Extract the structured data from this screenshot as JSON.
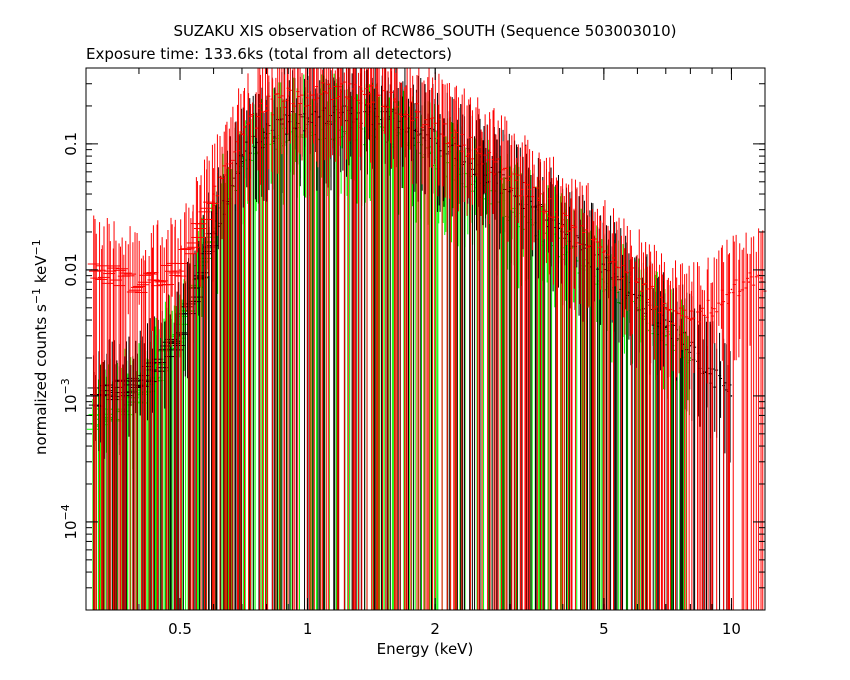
{
  "chart_data": {
    "type": "scatter",
    "title": "SUZAKU XIS observation of RCW86_SOUTH (Sequence 503003010)",
    "subtitle": "Exposure time: 133.6ks (total from all detectors)",
    "xlabel": "Energy (keV)",
    "ylabel_main": "normalized counts s",
    "ylabel_mid": " keV",
    "ylabel_exp": "−1",
    "x_scale": "log",
    "y_scale": "log",
    "xlim": [
      0.3,
      12
    ],
    "ylim": [
      2e-05,
      0.4
    ],
    "x_ticks": [
      {
        "value": 0.5,
        "label": "0.5"
      },
      {
        "value": 1,
        "label": "1"
      },
      {
        "value": 2,
        "label": "2"
      },
      {
        "value": 5,
        "label": "5"
      },
      {
        "value": 10,
        "label": "10"
      }
    ],
    "y_ticks": [
      {
        "value": 0.1,
        "label": "0.1"
      },
      {
        "value": 0.01,
        "label": "0.01"
      },
      {
        "value": 0.001,
        "base": "10",
        "exp": "−3"
      },
      {
        "value": 0.0001,
        "base": "10",
        "exp": "−4"
      }
    ],
    "grid": false,
    "legend": "none",
    "series": [
      {
        "color": "#000000",
        "points": [
          [
            0.31,
            0.001
          ],
          [
            0.4,
            0.0012
          ],
          [
            0.5,
            0.003
          ],
          [
            0.6,
            0.02
          ],
          [
            0.7,
            0.08
          ],
          [
            0.8,
            0.12
          ],
          [
            0.9,
            0.15
          ],
          [
            1.0,
            0.16
          ],
          [
            1.2,
            0.17
          ],
          [
            1.4,
            0.18
          ],
          [
            1.6,
            0.16
          ],
          [
            1.8,
            0.13
          ],
          [
            2.0,
            0.11
          ],
          [
            2.5,
            0.07
          ],
          [
            3.0,
            0.045
          ],
          [
            3.5,
            0.03
          ],
          [
            4.0,
            0.02
          ],
          [
            5.0,
            0.011
          ],
          [
            6.0,
            0.006
          ],
          [
            7.0,
            0.0035
          ],
          [
            8.0,
            0.0025
          ],
          [
            9.0,
            0.0015
          ],
          [
            10.0,
            0.001
          ]
        ]
      },
      {
        "color": "#ff0000",
        "points": [
          [
            0.31,
            0.01
          ],
          [
            0.4,
            0.008
          ],
          [
            0.5,
            0.01
          ],
          [
            0.6,
            0.04
          ],
          [
            0.7,
            0.12
          ],
          [
            0.8,
            0.2
          ],
          [
            0.9,
            0.24
          ],
          [
            1.0,
            0.25
          ],
          [
            1.2,
            0.26
          ],
          [
            1.4,
            0.25
          ],
          [
            1.6,
            0.22
          ],
          [
            1.8,
            0.18
          ],
          [
            2.0,
            0.14
          ],
          [
            2.5,
            0.09
          ],
          [
            3.0,
            0.055
          ],
          [
            3.5,
            0.037
          ],
          [
            4.0,
            0.025
          ],
          [
            5.0,
            0.014
          ],
          [
            6.0,
            0.008
          ],
          [
            7.0,
            0.005
          ],
          [
            8.0,
            0.004
          ],
          [
            9.0,
            0.005
          ],
          [
            10.0,
            0.007
          ],
          [
            11.0,
            0.008
          ],
          [
            12.0,
            0.008
          ]
        ]
      },
      {
        "color": "#00ff00",
        "points": [
          [
            0.31,
            0.0006
          ],
          [
            0.4,
            0.001
          ],
          [
            0.5,
            0.003
          ],
          [
            0.6,
            0.02
          ],
          [
            0.7,
            0.07
          ],
          [
            0.8,
            0.1
          ],
          [
            0.9,
            0.12
          ],
          [
            1.0,
            0.13
          ],
          [
            1.2,
            0.13
          ],
          [
            1.4,
            0.12
          ],
          [
            1.6,
            0.11
          ],
          [
            1.8,
            0.09
          ],
          [
            2.0,
            0.075
          ],
          [
            2.5,
            0.045
          ],
          [
            3.0,
            0.03
          ],
          [
            3.5,
            0.02
          ],
          [
            4.0,
            0.015
          ],
          [
            5.0,
            0.008
          ],
          [
            6.0,
            0.005
          ],
          [
            7.0,
            0.003
          ],
          [
            8.0,
            0.002
          ]
        ]
      }
    ]
  }
}
